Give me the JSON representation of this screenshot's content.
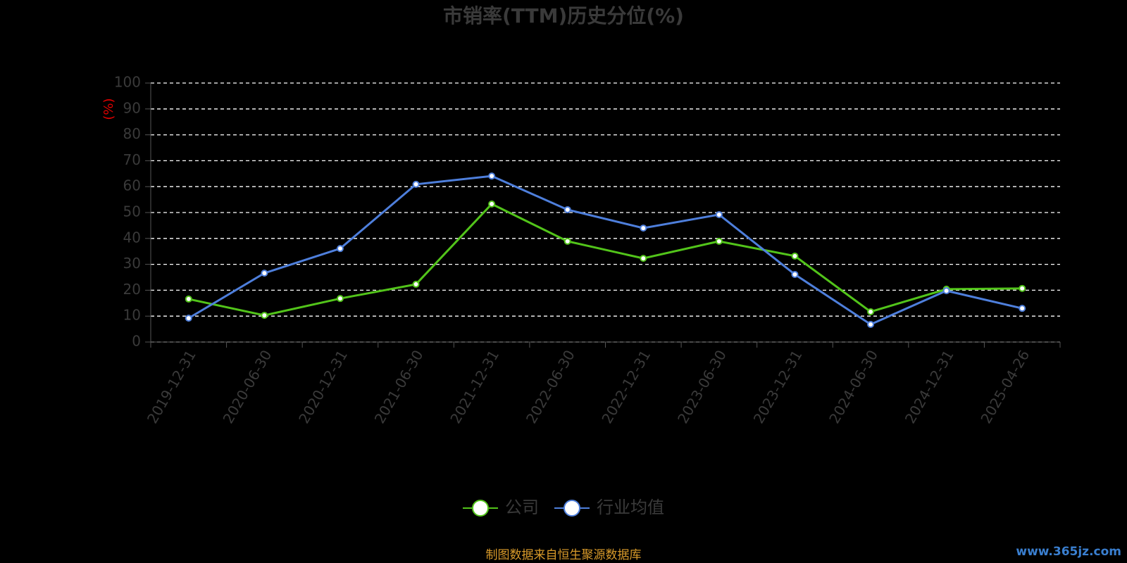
{
  "chart_data": {
    "type": "line",
    "title": "市销率(TTM)历史分位(%)",
    "y_label": "(%)",
    "categories": [
      "2019-12-31",
      "2020-06-30",
      "2020-12-31",
      "2021-06-30",
      "2021-12-31",
      "2022-06-30",
      "2022-12-31",
      "2023-06-30",
      "2023-12-31",
      "2024-06-30",
      "2024-12-31",
      "2025-04-26"
    ],
    "series": [
      {
        "name": "公司",
        "color": "#52c41a",
        "values": [
          16.6,
          10.3,
          16.8,
          22.3,
          53.3,
          38.9,
          32.3,
          38.9,
          33.2,
          11.7,
          20.4,
          20.7
        ]
      },
      {
        "name": "行业均值",
        "color": "#4e7fdc",
        "values": [
          9.2,
          26.6,
          36.1,
          60.9,
          64.1,
          51.1,
          44.0,
          49.2,
          26.1,
          6.8,
          19.8,
          13.0
        ]
      }
    ],
    "ylim": [
      0,
      100
    ],
    "yticks": [
      0,
      10,
      20,
      30,
      40,
      50,
      60,
      70,
      80,
      90,
      100
    ],
    "grid": true,
    "legend": "bottom",
    "source": "制图数据来自恒生聚源数据库",
    "watermark": "www.365jz.com"
  }
}
